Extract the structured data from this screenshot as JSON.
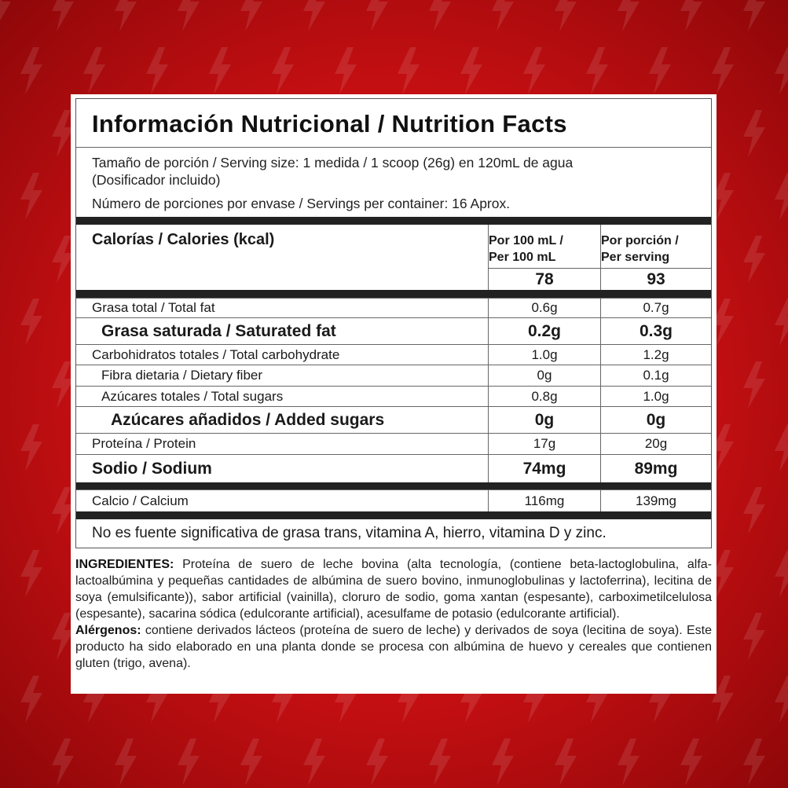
{
  "colors": {
    "background": "#c40f12",
    "label_bg": "#ffffff",
    "text": "#1a1a1a",
    "bars": "#222222"
  },
  "title": "Información Nutricional / Nutrition Facts",
  "serving": {
    "line1": "Tamaño de porción / Serving size: 1 medida / 1 scoop (26g) en 120mL de agua",
    "line2": "(Dosificador incluido)",
    "line3": "Número de porciones por envase / Servings per container: 16 Aprox."
  },
  "calories": {
    "label": "Calorías / Calories (kcal)",
    "col1_header": [
      "Por 100 mL /",
      "Per 100 mL"
    ],
    "col2_header": [
      "Por porción /",
      "Per serving"
    ],
    "col1_value": "78",
    "col2_value": "93"
  },
  "nutrients": [
    {
      "label": "Grasa total / Total fat",
      "per100": "0.6g",
      "perServing": "0.7g"
    },
    {
      "label": "Grasa saturada / Saturated fat",
      "per100": "0.2g",
      "perServing": "0.3g"
    },
    {
      "label": "Carbohidratos totales / Total carbohydrate",
      "per100": "1.0g",
      "perServing": "1.2g"
    },
    {
      "label": "Fibra dietaria / Dietary fiber",
      "per100": "0g",
      "perServing": "0.1g"
    },
    {
      "label": "Azúcares totales / Total sugars",
      "per100": "0.8g",
      "perServing": "1.0g"
    },
    {
      "label": "Azúcares añadidos / Added sugars",
      "per100": "0g",
      "perServing": "0g"
    },
    {
      "label": "Proteína / Protein",
      "per100": "17g",
      "perServing": "20g"
    },
    {
      "label": "Sodio / Sodium",
      "per100": "74mg",
      "perServing": "89mg"
    },
    {
      "label": "Calcio / Calcium",
      "per100": "116mg",
      "perServing": "139mg"
    }
  ],
  "note": "No es fuente significativa de grasa trans, vitamina  A, hierro, vitamina D y zinc.",
  "ingredients": {
    "heading": "INGREDIENTES:",
    "text": " Proteína de suero de leche bovina (alta tecnología, (contiene beta-lactoglobulina, alfa-lactoalbúmina y pequeñas cantidades de albúmina de suero bovino, inmunoglobulinas y lactoferrina), lecitina de soya (emulsificante)), sabor artificial (vainilla), cloruro de sodio, goma xantan (espesante), carboximetilcelulosa (espesante), sacarina sódica (edulcorante artificial), acesulfame de potasio (edulcorante artificial)."
  },
  "allergens": {
    "heading": "Alérgenos:",
    "text": " contiene derivados lácteos (proteína de suero de leche) y derivados de soya (lecitina de soya). Este producto ha sido elaborado en una planta donde se procesa con albúmina de huevo y cereales que contienen gluten (trigo, avena)."
  }
}
